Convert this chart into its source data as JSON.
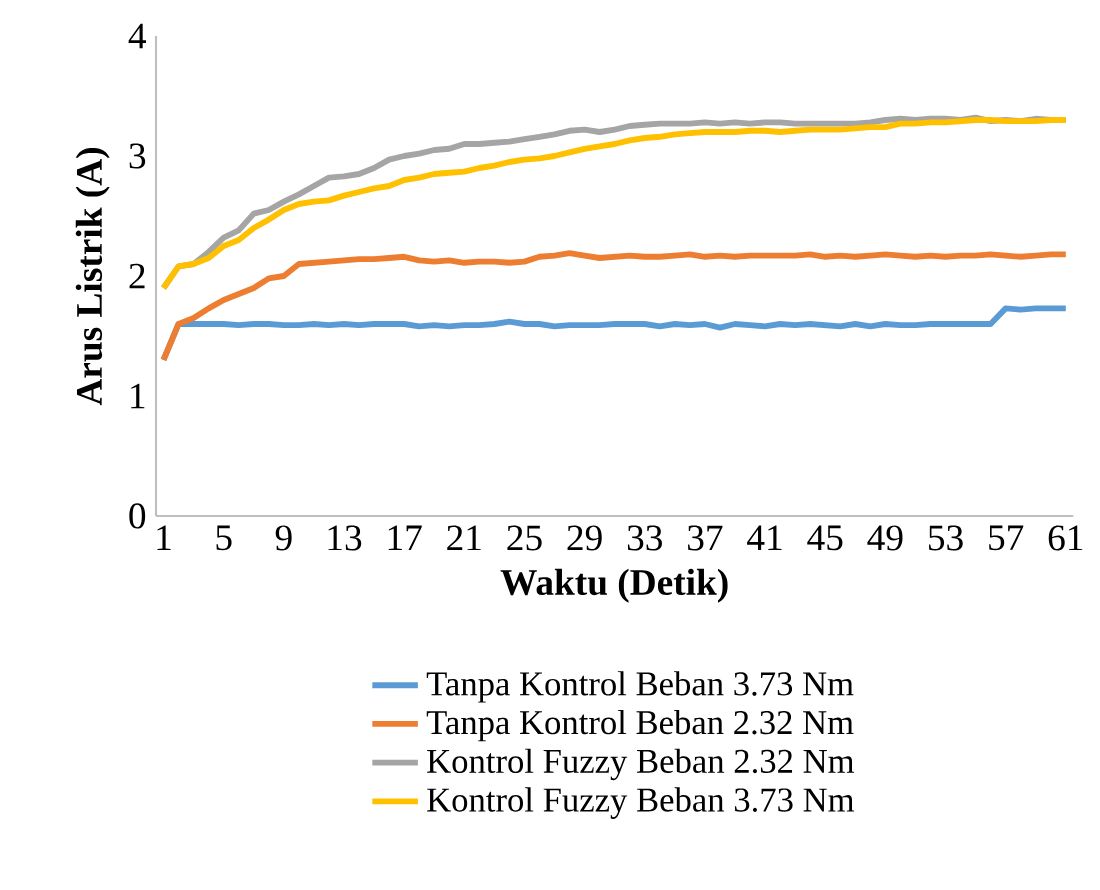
{
  "chart_data": {
    "type": "line",
    "xlabel": "Waktu (Detik)",
    "ylabel": "Arus Listrik (A)",
    "categories": [
      "1",
      null,
      null,
      null,
      "5",
      null,
      null,
      null,
      "9",
      null,
      null,
      null,
      "13",
      null,
      null,
      null,
      "17",
      null,
      null,
      null,
      "21",
      null,
      null,
      null,
      "25",
      null,
      null,
      null,
      "29",
      null,
      null,
      null,
      "33",
      null,
      null,
      null,
      "37",
      null,
      null,
      null,
      "41",
      null,
      null,
      null,
      "45",
      null,
      null,
      null,
      "49",
      null,
      null,
      null,
      "53",
      null,
      null,
      null,
      "57",
      null,
      null,
      null,
      "61"
    ],
    "ylim": [
      0,
      4
    ],
    "yticks": [
      0,
      1,
      2,
      3,
      4
    ],
    "grid": false,
    "legend": "bottom",
    "marker": "none",
    "line_style": "solid",
    "series": [
      {
        "name": "Tanpa Kontrol Beban 3.73 Nm",
        "color": "#5b9bd5",
        "values": [
          1.3,
          1.6,
          1.6,
          1.6,
          1.6,
          1.59,
          1.6,
          1.6,
          1.59,
          1.59,
          1.6,
          1.59,
          1.6,
          1.59,
          1.6,
          1.6,
          1.6,
          1.58,
          1.59,
          1.58,
          1.59,
          1.59,
          1.6,
          1.62,
          1.6,
          1.6,
          1.58,
          1.59,
          1.59,
          1.59,
          1.6,
          1.6,
          1.6,
          1.58,
          1.6,
          1.59,
          1.6,
          1.57,
          1.6,
          1.59,
          1.58,
          1.6,
          1.59,
          1.6,
          1.59,
          1.58,
          1.6,
          1.58,
          1.6,
          1.59,
          1.59,
          1.6,
          1.6,
          1.6,
          1.6,
          1.6,
          1.73,
          1.72,
          1.73,
          1.73,
          1.73
        ]
      },
      {
        "name": "Tanpa Kontrol Beban 2.32 Nm",
        "color": "#ed7d31",
        "values": [
          1.3,
          1.6,
          1.65,
          1.73,
          1.8,
          1.85,
          1.9,
          1.98,
          2.0,
          2.1,
          2.11,
          2.12,
          2.13,
          2.14,
          2.14,
          2.15,
          2.16,
          2.13,
          2.12,
          2.13,
          2.11,
          2.12,
          2.12,
          2.11,
          2.12,
          2.16,
          2.17,
          2.19,
          2.17,
          2.15,
          2.16,
          2.17,
          2.16,
          2.16,
          2.17,
          2.18,
          2.16,
          2.17,
          2.16,
          2.17,
          2.17,
          2.17,
          2.17,
          2.18,
          2.16,
          2.17,
          2.16,
          2.17,
          2.18,
          2.17,
          2.16,
          2.17,
          2.16,
          2.17,
          2.17,
          2.18,
          2.17,
          2.16,
          2.17,
          2.18,
          2.18
        ]
      },
      {
        "name": "Kontrol Fuzzy Beban 2.32 Nm",
        "color": "#a5a5a5",
        "values": [
          1.9,
          2.08,
          2.1,
          2.2,
          2.32,
          2.38,
          2.52,
          2.55,
          2.62,
          2.68,
          2.75,
          2.82,
          2.83,
          2.85,
          2.9,
          2.97,
          3.0,
          3.02,
          3.05,
          3.06,
          3.1,
          3.1,
          3.11,
          3.12,
          3.14,
          3.16,
          3.18,
          3.21,
          3.22,
          3.2,
          3.22,
          3.25,
          3.26,
          3.27,
          3.27,
          3.27,
          3.28,
          3.27,
          3.28,
          3.27,
          3.28,
          3.28,
          3.27,
          3.27,
          3.27,
          3.27,
          3.27,
          3.28,
          3.3,
          3.31,
          3.3,
          3.31,
          3.31,
          3.3,
          3.32,
          3.29,
          3.3,
          3.29,
          3.31,
          3.3,
          3.3
        ]
      },
      {
        "name": "Kontrol Fuzzy Beban 3.73 Nm",
        "color": "#ffc000",
        "values": [
          1.9,
          2.08,
          2.1,
          2.15,
          2.25,
          2.3,
          2.4,
          2.47,
          2.55,
          2.6,
          2.62,
          2.63,
          2.67,
          2.7,
          2.73,
          2.75,
          2.8,
          2.82,
          2.85,
          2.86,
          2.87,
          2.9,
          2.92,
          2.95,
          2.97,
          2.98,
          3.0,
          3.03,
          3.06,
          3.08,
          3.1,
          3.13,
          3.15,
          3.16,
          3.18,
          3.19,
          3.2,
          3.2,
          3.2,
          3.21,
          3.21,
          3.2,
          3.21,
          3.22,
          3.22,
          3.22,
          3.23,
          3.24,
          3.24,
          3.27,
          3.27,
          3.28,
          3.28,
          3.29,
          3.3,
          3.3,
          3.29,
          3.29,
          3.29,
          3.3,
          3.3
        ]
      }
    ]
  }
}
